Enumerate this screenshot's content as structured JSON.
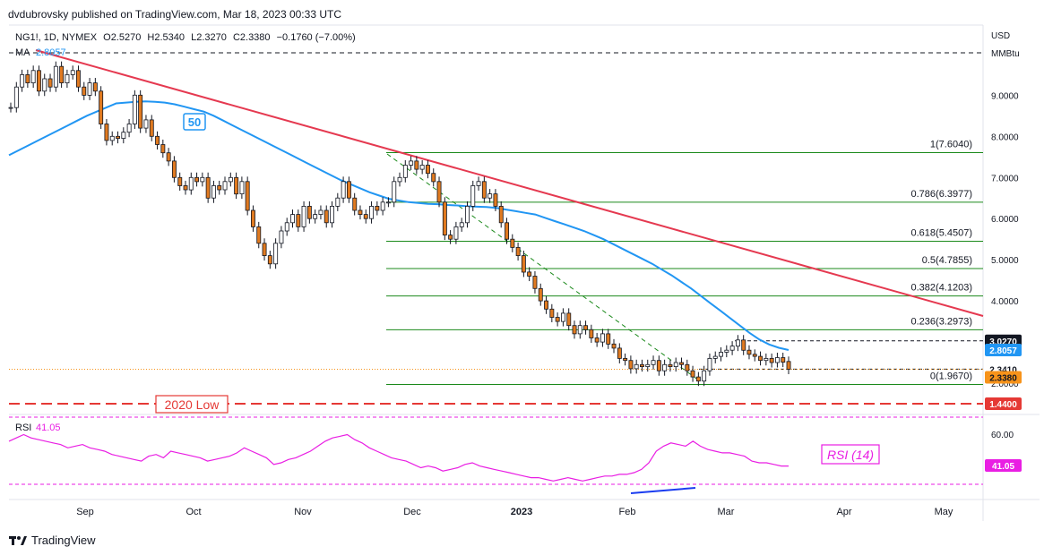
{
  "header": {
    "published": "dvdubrovsky published on TradingView.com, Mar 18, 2023 00:33 UTC"
  },
  "legend": {
    "symbol_line": "NG1!, 1D, NYMEX",
    "o_label": "O",
    "o_val": "2.5270",
    "h_label": "H",
    "h_val": "2.5340",
    "l_label": "L",
    "l_val": "2.3270",
    "c_label": "C",
    "c_val": "2.3380",
    "change": "−0.1760 (−7.00%)",
    "ma_label": "MA",
    "ma_val": "2.8057"
  },
  "axis": {
    "currency": "USD",
    "unit": "MMBtu",
    "y_ticks": [
      "9.0000",
      "8.0000",
      "7.0000",
      "6.0000",
      "5.0000",
      "4.0000",
      "2.0000"
    ],
    "rsi_ticks": [
      "60.00"
    ],
    "months": [
      "Sep",
      "Oct",
      "Nov",
      "Dec",
      "2023",
      "Feb",
      "Mar",
      "Apr",
      "May"
    ]
  },
  "price_tags": [
    {
      "label": "3.0270",
      "bg": "#131722",
      "fg": "#ffffff"
    },
    {
      "label": "2.8057",
      "bg": "#2196f3",
      "fg": "#ffffff"
    },
    {
      "label": "2.3410",
      "bg": "#ffffff",
      "fg": "#131722"
    },
    {
      "label": "2.3380",
      "bg": "#f7931a",
      "fg": "#131722"
    },
    {
      "label": "1.4400",
      "bg": "#e53935",
      "fg": "#ffffff"
    },
    {
      "label": "41.05",
      "bg": "#e91ee3",
      "fg": "#ffffff"
    }
  ],
  "fib_levels": [
    "1(7.6040)",
    "0.786(6.3977)",
    "0.618(5.4507)",
    "0.5(4.7855)",
    "0.382(4.1203)",
    "0.236(3.2973)",
    "0(1.9670)"
  ],
  "annotations": {
    "ma_period": "50",
    "low_2020": "2020 Low",
    "rsi_name": "RSI",
    "rsi_value": "41.05",
    "rsi_box": "RSI (14)"
  },
  "colors": {
    "up": "#ffffff",
    "down": "#e07a20",
    "wick": "#131722",
    "ma": "#2196f3",
    "trend": "#e53950",
    "fib": "#1b8a1b",
    "low_line": "#e53935",
    "rsi": "#e91ee3",
    "divergence": "#1a3cf0"
  },
  "footer": {
    "brand": "TradingView"
  },
  "chart_data": {
    "type": "candlestick",
    "title": "NG1!, 1D, NYMEX",
    "ylim": [
      1.44,
      9.5
    ],
    "months": [
      "Sep",
      "Oct",
      "Nov",
      "Dec",
      "2023",
      "Feb",
      "Mar",
      "Apr",
      "May"
    ],
    "last": {
      "open": 2.527,
      "high": 2.534,
      "low": 2.327,
      "close": 2.338,
      "change": -0.176,
      "change_pct": -7.0
    },
    "ma_50_last": 2.8057,
    "fibonacci": [
      {
        "ratio": 1,
        "price": 7.604
      },
      {
        "ratio": 0.786,
        "price": 6.3977
      },
      {
        "ratio": 0.618,
        "price": 5.4507
      },
      {
        "ratio": 0.5,
        "price": 4.7855
      },
      {
        "ratio": 0.382,
        "price": 4.1203
      },
      {
        "ratio": 0.236,
        "price": 3.2973
      },
      {
        "ratio": 0,
        "price": 1.967
      }
    ],
    "horizontal_levels": [
      3.027,
      2.341,
      1.44
    ],
    "low_2020": 1.44,
    "rsi_last": 41.05,
    "closes": [
      8.7,
      9.2,
      9.5,
      9.3,
      9.6,
      9.1,
      9.4,
      9.2,
      9.7,
      9.3,
      9.5,
      9.6,
      9.2,
      9.0,
      9.3,
      9.1,
      8.3,
      7.9,
      8.0,
      7.95,
      8.1,
      8.3,
      9.0,
      8.2,
      8.4,
      8.0,
      7.8,
      7.6,
      7.4,
      7.0,
      6.8,
      6.7,
      7.0,
      6.9,
      7.0,
      6.5,
      6.8,
      6.7,
      6.9,
      7.0,
      6.6,
      6.9,
      6.2,
      5.8,
      5.4,
      5.1,
      4.9,
      5.4,
      5.7,
      5.9,
      6.1,
      5.8,
      6.3,
      6.0,
      6.1,
      6.2,
      5.9,
      6.3,
      6.5,
      6.9,
      6.5,
      6.2,
      6.1,
      6.0,
      6.3,
      6.2,
      6.4,
      6.4,
      6.9,
      7.0,
      7.3,
      7.4,
      7.2,
      7.3,
      7.1,
      6.9,
      6.4,
      5.6,
      5.5,
      5.8,
      5.9,
      6.3,
      6.8,
      6.9,
      6.5,
      6.6,
      6.3,
      5.9,
      5.5,
      5.3,
      5.1,
      4.7,
      4.6,
      4.3,
      4.0,
      3.8,
      3.6,
      3.5,
      3.7,
      3.4,
      3.2,
      3.4,
      3.3,
      3.1,
      3.0,
      3.2,
      2.95,
      2.85,
      2.6,
      2.55,
      2.35,
      2.45,
      2.4,
      2.45,
      2.55,
      2.3,
      2.45,
      2.4,
      2.5,
      2.45,
      2.3,
      2.15,
      2.05,
      2.3,
      2.6,
      2.65,
      2.75,
      2.8,
      2.9,
      3.05,
      2.8,
      2.7,
      2.65,
      2.55,
      2.6,
      2.5,
      2.62,
      2.51,
      2.338
    ],
    "ma_50": [
      7.54,
      7.66,
      7.78,
      7.9,
      8.02,
      8.14,
      8.26,
      8.38,
      8.5,
      8.6,
      8.7,
      8.8,
      8.82,
      8.84,
      8.85,
      8.84,
      8.82,
      8.78,
      8.72,
      8.66,
      8.6,
      8.5,
      8.38,
      8.26,
      8.14,
      8.02,
      7.9,
      7.78,
      7.66,
      7.54,
      7.42,
      7.3,
      7.18,
      7.06,
      6.94,
      6.84,
      6.74,
      6.64,
      6.56,
      6.48,
      6.44,
      6.4,
      6.38,
      6.36,
      6.35,
      6.33,
      6.32,
      6.3,
      6.29,
      6.28,
      6.26,
      6.22,
      6.18,
      6.14,
      6.1,
      6.02,
      5.94,
      5.86,
      5.78,
      5.7,
      5.6,
      5.5,
      5.38,
      5.26,
      5.14,
      5.02,
      4.9,
      4.76,
      4.62,
      4.46,
      4.3,
      4.12,
      3.94,
      3.76,
      3.58,
      3.4,
      3.22,
      3.06,
      2.94,
      2.86,
      2.8057
    ],
    "rsi": [
      56,
      58,
      60,
      58,
      57,
      56,
      55,
      54,
      52,
      53,
      54,
      52,
      51,
      50,
      48,
      47,
      46,
      45,
      44,
      47,
      48,
      46,
      50,
      49,
      48,
      47,
      46,
      44,
      45,
      46,
      47,
      49,
      52,
      50,
      48,
      46,
      42,
      43,
      45,
      46,
      48,
      50,
      53,
      56,
      58,
      59,
      60,
      57,
      55,
      52,
      50,
      48,
      46,
      45,
      44,
      42,
      40,
      41,
      40,
      38,
      39,
      40,
      42,
      43,
      41,
      40,
      39,
      38,
      37,
      36,
      35,
      34,
      34,
      33,
      32,
      33,
      34,
      33,
      32,
      33,
      34,
      35,
      35,
      36,
      36,
      37,
      39,
      43,
      50,
      53,
      55,
      54,
      53,
      56,
      53,
      51,
      50,
      49,
      49,
      48,
      47,
      44,
      43,
      43,
      42,
      41,
      41.05
    ]
  }
}
